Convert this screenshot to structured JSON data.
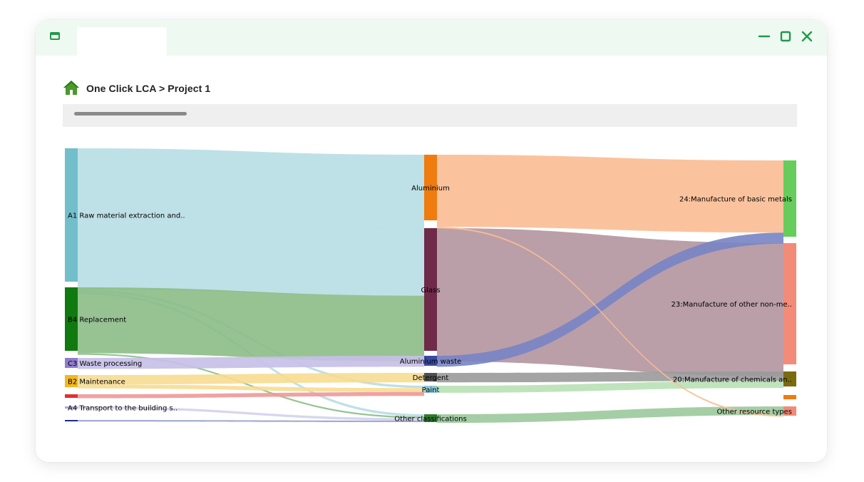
{
  "window": {
    "tab_label": ""
  },
  "breadcrumb": {
    "text": "One Click LCA > Project 1"
  },
  "colors": {
    "accent": "#1e9a48",
    "titlebar": "#eefaf1"
  },
  "icons": {
    "app": "window-icon",
    "home": "home-icon",
    "minimize": "minimize-icon",
    "maximize": "maximize-icon",
    "close": "close-icon"
  },
  "chart_data": {
    "type": "sankey",
    "nodes": [
      {
        "id": "A1",
        "label": "A1 Raw material extraction and..",
        "column": 0,
        "color": "#72bfcb"
      },
      {
        "id": "B4",
        "label": "B4 Replacement",
        "column": 0,
        "color": "#0f7a0f"
      },
      {
        "id": "C3",
        "label": "C3 Waste processing",
        "column": 0,
        "color": "#8f7ccc"
      },
      {
        "id": "B2",
        "label": "B2 Maintenance",
        "column": 0,
        "color": "#f2b820"
      },
      {
        "id": "RED0",
        "label": "",
        "column": 0,
        "color": "#e03030"
      },
      {
        "id": "A4",
        "label": "A4 Transport to the building s..",
        "column": 0,
        "color": "#a9a9d6"
      },
      {
        "id": "NAV0",
        "label": "",
        "column": 0,
        "color": "#1e2a8a"
      },
      {
        "id": "ALU",
        "label": "Aluminium",
        "column": 1,
        "color": "#f07c10"
      },
      {
        "id": "GLASS",
        "label": "Glass",
        "column": 1,
        "color": "#6e2a48"
      },
      {
        "id": "ALW",
        "label": "Aluminium waste",
        "column": 1,
        "color": "#3a4aa0"
      },
      {
        "id": "DET",
        "label": "Detergent",
        "column": 1,
        "color": "#505050"
      },
      {
        "id": "PAINT",
        "label": "Paint",
        "column": 1,
        "color": "#8ec9d8"
      },
      {
        "id": "OTHC",
        "label": "Other classifications",
        "column": 1,
        "color": "#2e7d2e"
      },
      {
        "id": "M24",
        "label": "24:Manufacture of basic metals",
        "column": 2,
        "color": "#66cc5c"
      },
      {
        "id": "M23",
        "label": "23:Manufacture of other non-me..",
        "column": 2,
        "color": "#f28c78"
      },
      {
        "id": "M20",
        "label": "20:Manufacture of chemicals an..",
        "column": 2,
        "color": "#7a6a10"
      },
      {
        "id": "ORANGE2",
        "label": "",
        "column": 2,
        "color": "#f07c10"
      },
      {
        "id": "ORT",
        "label": "Other resource types",
        "column": 2,
        "color": "#f28c78"
      }
    ],
    "links": [
      {
        "source": "A1",
        "target": "ALU",
        "value": 94,
        "color": "#b7dde4"
      },
      {
        "source": "A1",
        "target": "GLASS",
        "value": 86,
        "color": "#b7dde4"
      },
      {
        "source": "A1",
        "target": "PAINT",
        "value": 3,
        "color": "#b7dde4"
      },
      {
        "source": "A1",
        "target": "OTHC",
        "value": 3,
        "color": "#b7dde4"
      },
      {
        "source": "B4",
        "target": "GLASS",
        "value": 84,
        "color": "#8cbd86"
      },
      {
        "source": "B4",
        "target": "OTHC",
        "value": 2,
        "color": "#8cbd86"
      },
      {
        "source": "C3",
        "target": "ALW",
        "value": 14,
        "color": "#c6bfe8"
      },
      {
        "source": "B2",
        "target": "DET",
        "value": 12,
        "color": "#f7dc90"
      },
      {
        "source": "B2",
        "target": "PAINT",
        "value": 5,
        "color": "#f7dc90"
      },
      {
        "source": "RED0",
        "target": "PAINT",
        "value": 5,
        "color": "#ee9898"
      },
      {
        "source": "A4",
        "target": "OTHC",
        "value": 3,
        "color": "#d2d2ec"
      },
      {
        "source": "NAV0",
        "target": "OTHC",
        "value": 2,
        "color": "#9aa2d2"
      },
      {
        "source": "ALU",
        "target": "M24",
        "value": 92,
        "color": "#f9bc94"
      },
      {
        "source": "GLASS",
        "target": "M23",
        "value": 170,
        "color": "#b2949e"
      },
      {
        "source": "ALW",
        "target": "M24",
        "value": 14,
        "color": "#7884c4"
      },
      {
        "source": "DET",
        "target": "M20",
        "value": 12,
        "color": "#9a9a9a"
      },
      {
        "source": "PAINT",
        "target": "M20",
        "value": 9,
        "color": "#b8e0b2"
      },
      {
        "source": "OTHC",
        "target": "ORT",
        "value": 11,
        "color": "#9cc99c"
      },
      {
        "source": "ALU",
        "target": "ORT",
        "value": 2,
        "color": "#f9bc94"
      }
    ]
  }
}
